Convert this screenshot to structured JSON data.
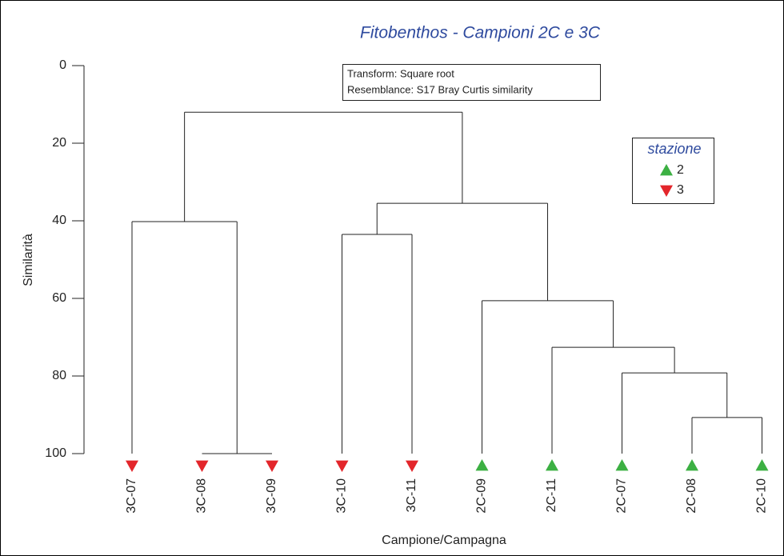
{
  "chart_data": {
    "type": "dendrogram",
    "title": "Fitobenthos - Campioni 2C e 3C",
    "ylabel": "Similarità",
    "xlabel": "Campione/Campagna",
    "annotations": [
      "Transform: Square root",
      "Resemblance: S17 Bray Curtis similarity"
    ],
    "categories": [
      "3C-07",
      "3C-08",
      "3C-09",
      "3C-10",
      "3C-11",
      "2C-09",
      "2C-11",
      "2C-07",
      "2C-08",
      "2C-10"
    ],
    "leaf_group": [
      1,
      1,
      1,
      1,
      1,
      0,
      0,
      0,
      0,
      0
    ],
    "legend": {
      "title": "stazione",
      "entries": [
        {
          "name": "2",
          "color": "#3cb043",
          "marker": "triangle-up"
        },
        {
          "name": "3",
          "color": "#e3262b",
          "marker": "triangle-down"
        }
      ]
    },
    "tree": {
      "value": 12,
      "children": [
        {
          "value": 40.2,
          "children": [
            0,
            {
              "value": 100,
              "children": [
                1,
                2
              ]
            }
          ]
        },
        {
          "value": 35.5,
          "children": [
            {
              "value": 43.5,
              "children": [
                3,
                4
              ]
            },
            {
              "value": 60.6,
              "children": [
                5,
                {
                  "value": 72.6,
                  "children": [
                    6,
                    {
                      "value": 79.2,
                      "children": [
                        7,
                        {
                          "value": 90.7,
                          "children": [
                            8,
                            9
                          ]
                        }
                      ]
                    }
                  ]
                }
              ]
            }
          ]
        }
      ]
    },
    "ylim": [
      0,
      100
    ],
    "yticks": [
      0,
      20,
      40,
      60,
      80,
      100
    ]
  }
}
